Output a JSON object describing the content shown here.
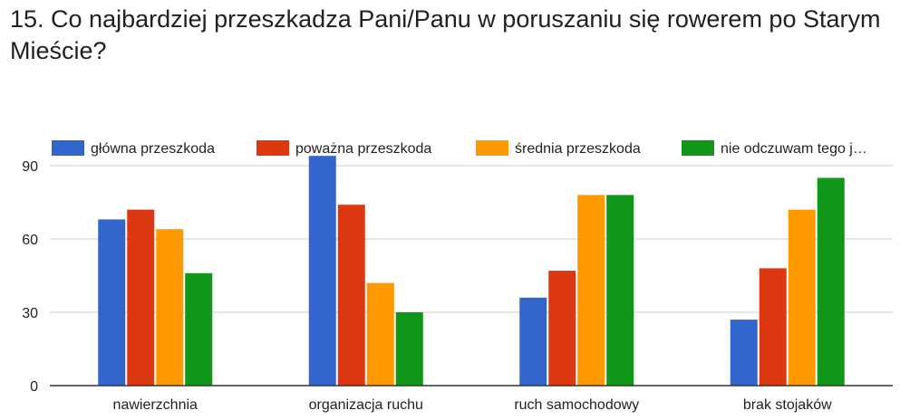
{
  "chart_data": {
    "type": "bar",
    "title": "15. Co najbardziej przeszkadza Pani/Panu w poruszaniu się rowerem po Starym Mieście?",
    "xlabel": "",
    "ylabel": "",
    "categories": [
      "nawierzchnia",
      "organizacja ruchu",
      "ruch samochodowy",
      "brak stojaków"
    ],
    "series": [
      {
        "name": "główna przeszkoda",
        "values": [
          68,
          94,
          36,
          27
        ],
        "color": "#3366cc"
      },
      {
        "name": "poważna przeszkoda",
        "values": [
          72,
          74,
          47,
          48
        ],
        "color": "#dc3912"
      },
      {
        "name": "średnia przeszkoda",
        "values": [
          64,
          42,
          78,
          72
        ],
        "color": "#ff9900"
      },
      {
        "name": "nie odczuwam tego j…",
        "values": [
          46,
          30,
          78,
          85
        ],
        "color": "#109618"
      }
    ],
    "ylim": [
      0,
      90
    ],
    "yticks": [
      0,
      30,
      60,
      90
    ],
    "grid": true,
    "legend_position": "top"
  }
}
